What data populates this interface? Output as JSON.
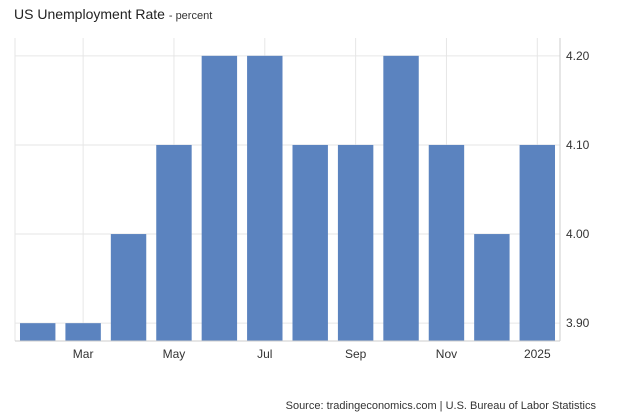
{
  "header": {
    "title": "US Unemployment Rate",
    "subtitle": "- percent"
  },
  "source": "Source: tradingeconomics.com | U.S. Bureau of Labor Statistics",
  "colors": {
    "bar": "#5b83bf",
    "grid": "#e6e6e6",
    "axis": "#cccccc",
    "text": "#333333"
  },
  "chart_data": {
    "type": "bar",
    "title": "US Unemployment Rate",
    "subtitle": "- percent",
    "periods": [
      "2024-02",
      "2024-03",
      "2024-04",
      "2024-05",
      "2024-06",
      "2024-07",
      "2024-08",
      "2024-09",
      "2024-10",
      "2024-11",
      "2024-12",
      "2025-01"
    ],
    "values": [
      3.9,
      3.9,
      4.0,
      4.1,
      4.2,
      4.2,
      4.1,
      4.1,
      4.2,
      4.1,
      4.0,
      4.1
    ],
    "x_ticks": [
      {
        "label": "Mar",
        "index": 1
      },
      {
        "label": "May",
        "index": 3
      },
      {
        "label": "Jul",
        "index": 5
      },
      {
        "label": "Sep",
        "index": 7
      },
      {
        "label": "Nov",
        "index": 9
      },
      {
        "label": "2025",
        "index": 11
      }
    ],
    "y_ticks": [
      {
        "label": "3.90",
        "value": 3.9
      },
      {
        "label": "4.00",
        "value": 4.0
      },
      {
        "label": "4.10",
        "value": 4.1
      },
      {
        "label": "4.20",
        "value": 4.2
      }
    ],
    "ylim": [
      3.88,
      4.22
    ],
    "grid": true,
    "y_axis_side": "right",
    "legend": "none"
  }
}
